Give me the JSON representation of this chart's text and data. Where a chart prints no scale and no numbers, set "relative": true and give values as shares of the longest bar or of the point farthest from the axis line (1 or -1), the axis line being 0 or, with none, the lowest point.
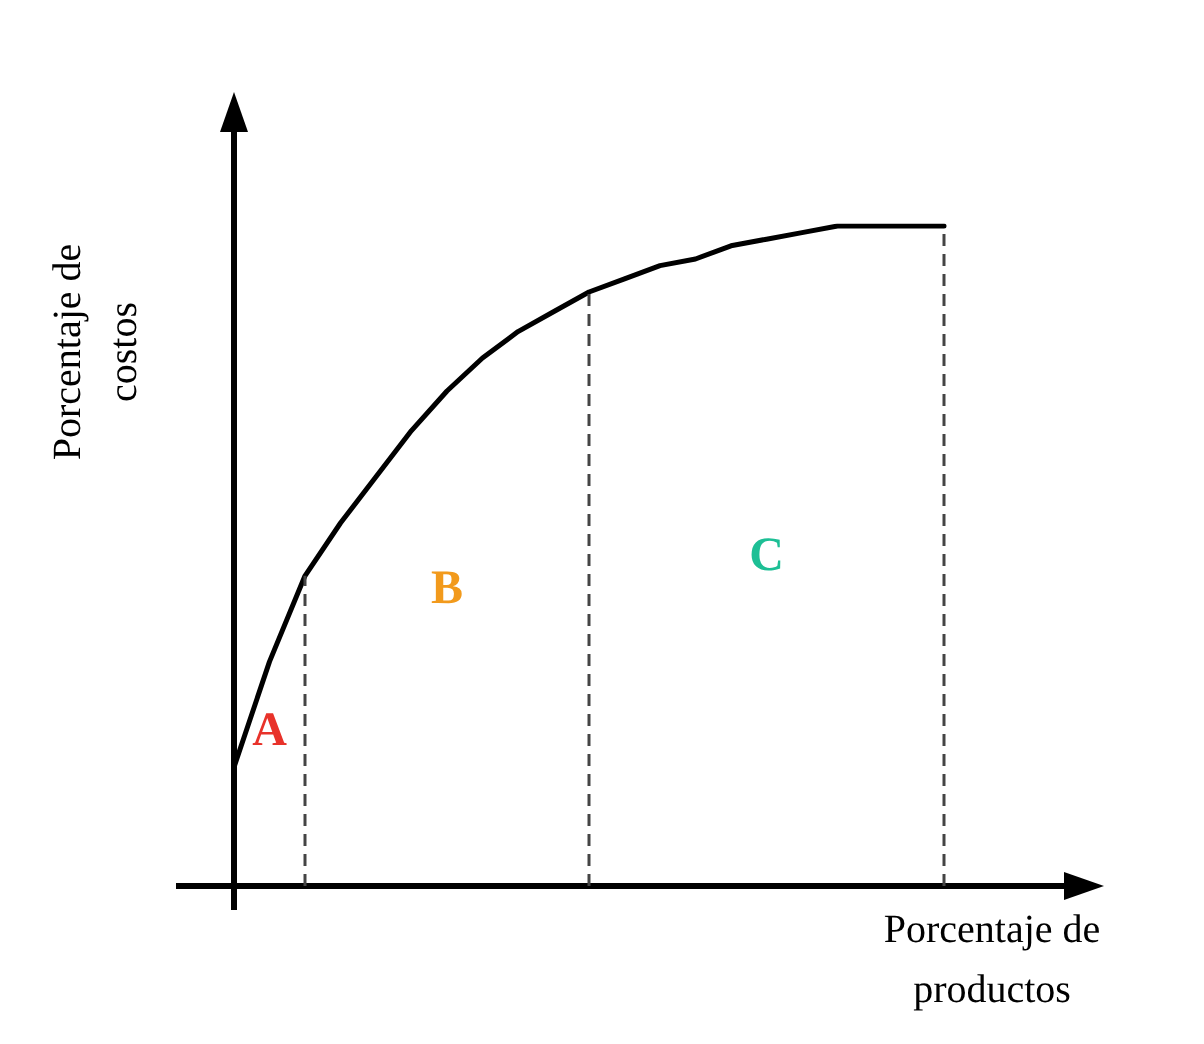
{
  "chart_data": {
    "type": "line",
    "relative": true,
    "xlabel": "Porcentaje de productos",
    "ylabel": "Porcentaje de costos",
    "categories": [
      null,
      null,
      null,
      null,
      null,
      null,
      null,
      null,
      null,
      null,
      null,
      null,
      null,
      null,
      null,
      null,
      null,
      null,
      null,
      null,
      null
    ],
    "series": [
      {
        "color": "#000000",
        "values": [
          0.18,
          0.34,
          0.47,
          0.55,
          0.62,
          0.69,
          0.75,
          0.8,
          0.84,
          0.87,
          0.9,
          0.92,
          0.94,
          0.95,
          0.97,
          0.98,
          0.99,
          1,
          1,
          1,
          1
        ]
      }
    ],
    "annotations": [
      "A",
      "B",
      "C"
    ],
    "marker": "none",
    "line_style": "solid"
  }
}
